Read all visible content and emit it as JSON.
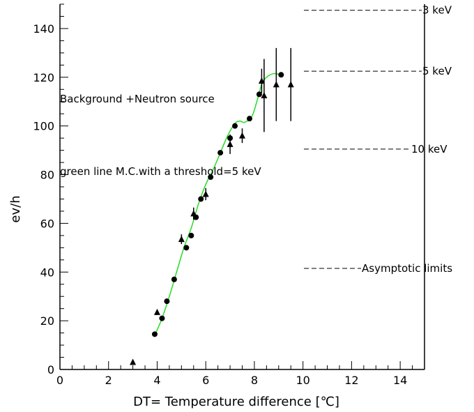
{
  "chart_data": {
    "type": "scatter",
    "title": "",
    "xlabel": "DT= Temperature difference",
    "xlabel_unit": "[℃]",
    "ylabel": "ev/h",
    "xlim": [
      0,
      15
    ],
    "ylim": [
      0,
      150
    ],
    "x_ticks": [
      "0",
      "2",
      "4",
      "6",
      "8",
      "10",
      "12",
      "14"
    ],
    "y_ticks": [
      "0",
      "20",
      "40",
      "60",
      "80",
      "100",
      "120",
      "140"
    ],
    "grid": false,
    "annotations": [
      "Background +Neutron source",
      "green line M.C.with a threshold=5 keV"
    ],
    "asymptotic_limits": [
      {
        "label": "3 keV",
        "y": 147.5
      },
      {
        "label": "5 keV",
        "y": 122.5
      },
      {
        "label": "10 keV",
        "y": 90.5
      },
      {
        "label": "Asymptotic limits",
        "y": 41.5
      }
    ],
    "series": [
      {
        "marker": "circle",
        "points": [
          {
            "x": 3.9,
            "y": 14.5,
            "err": 0
          },
          {
            "x": 4.2,
            "y": 21,
            "err": 0
          },
          {
            "x": 4.4,
            "y": 28,
            "err": 0
          },
          {
            "x": 4.7,
            "y": 37,
            "err": 0
          },
          {
            "x": 5.2,
            "y": 50,
            "err": 0
          },
          {
            "x": 5.4,
            "y": 55,
            "err": 0
          },
          {
            "x": 5.6,
            "y": 62.5,
            "err": 0
          },
          {
            "x": 5.8,
            "y": 70,
            "err": 0
          },
          {
            "x": 6.2,
            "y": 79,
            "err": 0
          },
          {
            "x": 6.6,
            "y": 89,
            "err": 0
          },
          {
            "x": 7.0,
            "y": 95,
            "err": 0
          },
          {
            "x": 7.2,
            "y": 100,
            "err": 0
          },
          {
            "x": 7.8,
            "y": 103,
            "err": 0
          },
          {
            "x": 8.2,
            "y": 113,
            "err": 0
          },
          {
            "x": 9.1,
            "y": 121,
            "err": 0
          }
        ]
      },
      {
        "marker": "triangle",
        "points": [
          {
            "x": 3.0,
            "y": 3,
            "err": 0
          },
          {
            "x": 4.0,
            "y": 23.5,
            "err": 0
          },
          {
            "x": 5.0,
            "y": 53.5,
            "err": 2
          },
          {
            "x": 5.5,
            "y": 64,
            "err": 2.5
          },
          {
            "x": 6.0,
            "y": 72,
            "err": 2.5
          },
          {
            "x": 7.0,
            "y": 92.5,
            "err": 4
          },
          {
            "x": 7.5,
            "y": 96,
            "err": 3
          },
          {
            "x": 8.3,
            "y": 118.5,
            "err": 5
          },
          {
            "x": 8.4,
            "y": 112.5,
            "err": 15
          },
          {
            "x": 8.9,
            "y": 117,
            "err": 15
          },
          {
            "x": 9.5,
            "y": 117,
            "err": 15
          }
        ]
      }
    ],
    "mc_curve": {
      "color": "#22dd22",
      "x": [
        3.9,
        4.2,
        4.5,
        4.8,
        5.1,
        5.4,
        5.7,
        6.0,
        6.3,
        6.6,
        6.9,
        7.2,
        7.4,
        7.6,
        7.9,
        8.1,
        8.3,
        8.5,
        8.8,
        9.1
      ],
      "y": [
        14,
        21,
        30,
        40,
        50,
        58,
        68,
        76,
        82,
        89,
        96,
        101,
        102,
        101.5,
        104,
        110,
        117,
        120,
        121.5,
        121
      ]
    }
  }
}
